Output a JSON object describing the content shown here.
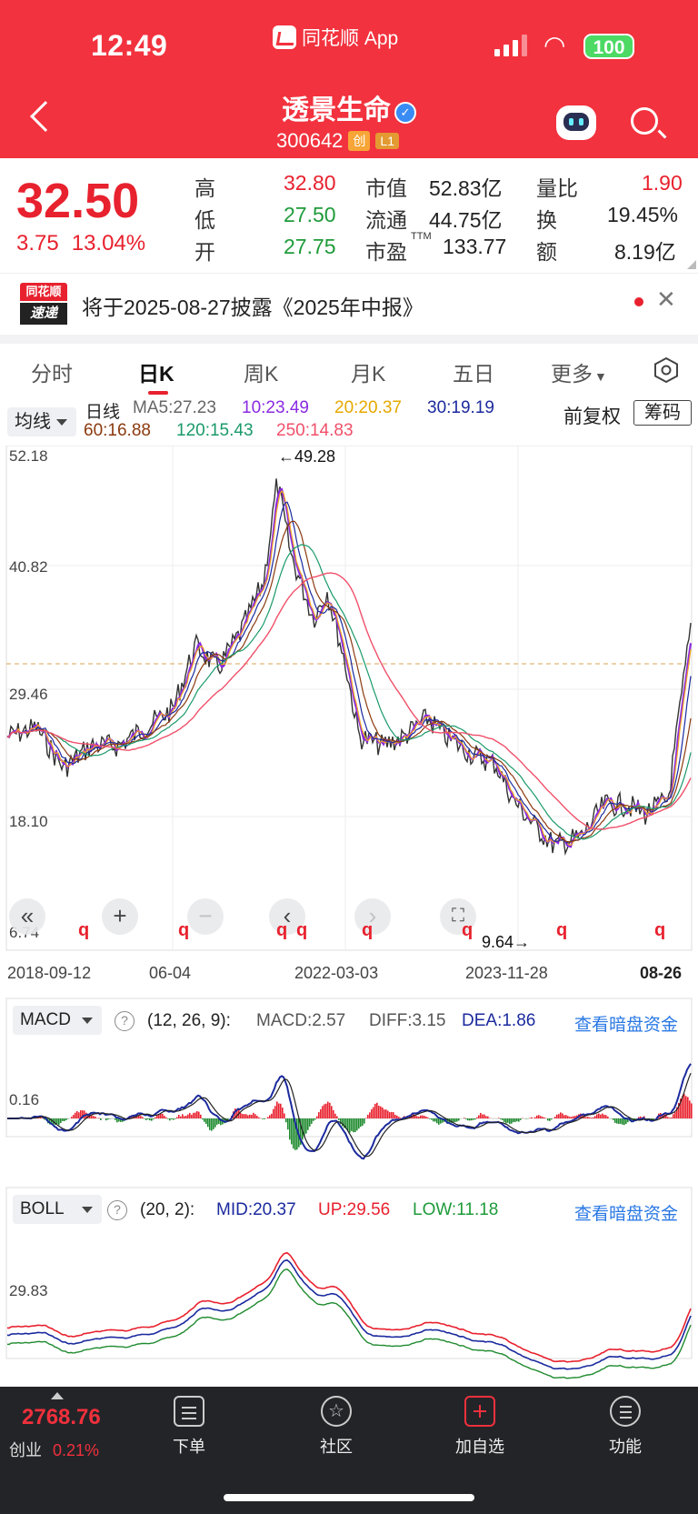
{
  "status_bar": {
    "time": "12:49",
    "app": "同花顺 App",
    "battery": "100"
  },
  "nav": {
    "stock_name": "透景生命",
    "stock_code": "300642",
    "tag_board": "创",
    "tag_level": "L1"
  },
  "quote": {
    "price": "32.50",
    "change": "3.75",
    "change_pct": "13.04%",
    "high_label": "高",
    "high": "32.80",
    "low_label": "低",
    "low": "27.50",
    "open_label": "开",
    "open": "27.75",
    "mktcap_label": "市值",
    "mktcap": "52.83亿",
    "float_label": "流通",
    "float": "44.75亿",
    "pe_label": "市盈",
    "pe_sup": "TTM",
    "pe": "133.77",
    "volratio_label": "量比",
    "volratio": "1.90",
    "turnover_label": "换",
    "turnover": "19.45%",
    "amount_label": "额",
    "amount": "8.19亿"
  },
  "notice": {
    "logo_top": "同花顺",
    "logo_bottom": "速递",
    "text": "将于2025-08-27披露《2025年中报》"
  },
  "tabs": [
    "分时",
    "日K",
    "周K",
    "月K",
    "五日",
    "更多"
  ],
  "ma_bar": {
    "selector": "均线",
    "daily": "日线",
    "ma5": "MA5:27.23",
    "ma10": "10:23.49",
    "ma20": "20:20.37",
    "ma30": "30:19.19",
    "ma60": "60:16.88",
    "ma120": "120:15.43",
    "ma250": "250:14.83",
    "adjust": "前复权",
    "chip": "筹码"
  },
  "kline": {
    "y_ticks": [
      "52.18",
      "40.82",
      "29.46",
      "18.10",
      "6.74"
    ],
    "high_mark": "←49.28",
    "low_mark": "9.64→",
    "dates": [
      "2018-09-12",
      "06-04",
      "2022-03-03",
      "2023-11-28",
      "08-26"
    ],
    "marker": "q",
    "colors": {
      "ma5": "#f5a623",
      "ma10": "#8a2be2",
      "ma20": "#e6a800",
      "ma30": "#1b2a9e",
      "ma60": "#8b3a0f",
      "ma120": "#1a9a6a",
      "ma250": "#f0506a"
    }
  },
  "macd": {
    "selector": "MACD",
    "params": "(12, 26, 9):",
    "macd": "MACD:2.57",
    "diff": "DIFF:3.15",
    "dea": "DEA:1.86",
    "link": "查看暗盘资金",
    "y_tick": "0.16"
  },
  "boll": {
    "selector": "BOLL",
    "params": "(20, 2):",
    "mid": "MID:20.37",
    "up": "UP:29.56",
    "low": "LOW:11.18",
    "link": "查看暗盘资金",
    "y_tick": "29.83"
  },
  "bottom_bar": {
    "index_value": "2768.76",
    "index_name": "创业",
    "index_pct": "0.21%",
    "items": [
      "下单",
      "社区",
      "加自选",
      "功能"
    ]
  }
}
